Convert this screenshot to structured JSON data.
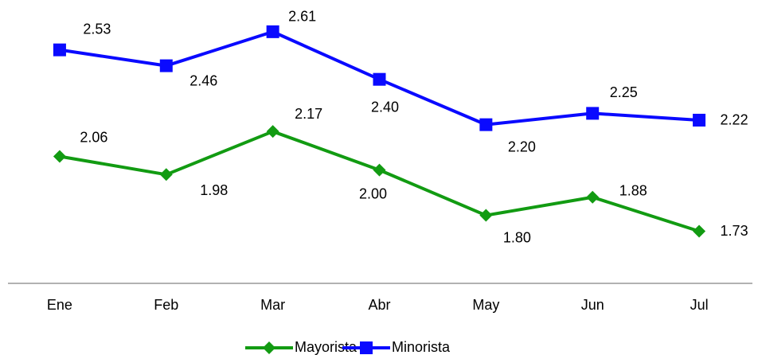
{
  "chart_data": {
    "type": "line",
    "categories": [
      "Ene",
      "Feb",
      "Mar",
      "Abr",
      "May",
      "Jun",
      "Jul"
    ],
    "series": [
      {
        "name": "Mayorista",
        "color": "#129b12",
        "marker": "diamond",
        "values": [
          2.06,
          1.98,
          2.17,
          2.0,
          1.8,
          1.88,
          1.73
        ],
        "value_labels": [
          "2.06",
          "1.98",
          "2.17",
          "2.00",
          "1.80",
          "1.88",
          "1.73"
        ]
      },
      {
        "name": "Minorista",
        "color": "#0a0aff",
        "marker": "square",
        "values": [
          2.53,
          2.46,
          2.61,
          2.4,
          2.2,
          2.25,
          2.22
        ],
        "value_labels": [
          "2.53",
          "2.46",
          "2.61",
          "2.40",
          "2.20",
          "2.25",
          "2.22"
        ]
      }
    ],
    "ylim": [
      1.5,
      2.75
    ],
    "grid": false,
    "legend": "bottom"
  }
}
